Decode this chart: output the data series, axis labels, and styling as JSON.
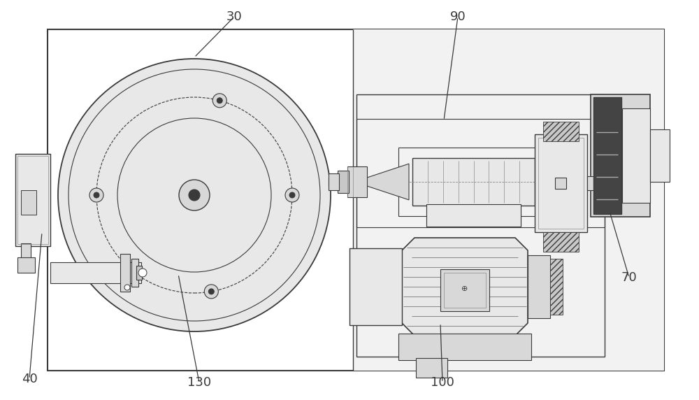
{
  "bg_color": "#ffffff",
  "lc": "#3a3a3a",
  "mg": "#888888",
  "lg": "#bbbbbb",
  "fg": "#e8e8e8",
  "fg2": "#d8d8d8",
  "fg3": "#c8c8c8",
  "hatch_dark": "#555555",
  "figsize": [
    10.0,
    5.72
  ],
  "dpi": 100,
  "label_fontsize": 13
}
